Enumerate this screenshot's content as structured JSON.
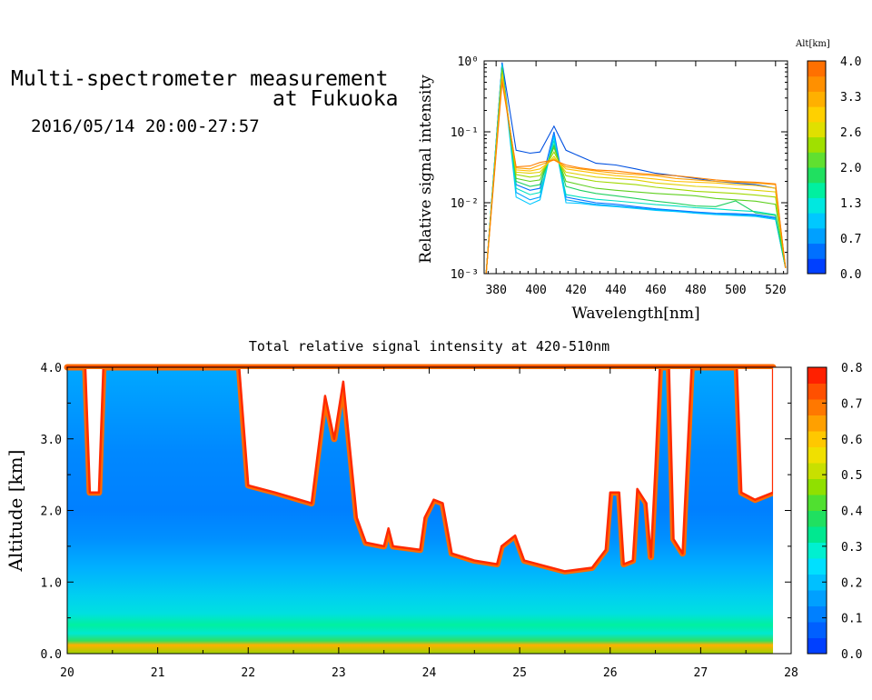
{
  "header": {
    "title_line1": "Multi-spectrometer measurement",
    "title_line2": "at Fukuoka",
    "datetime": "2016/05/14 20:00-27:57"
  },
  "chart_data": [
    {
      "type": "line",
      "xlabel": "Wavelength[nm]",
      "ylabel": "Relative signal intensity",
      "xlim": [
        374,
        526
      ],
      "ylim": [
        0.001,
        1
      ],
      "yscale": "log",
      "x_ticks": [
        380,
        400,
        420,
        440,
        460,
        480,
        500,
        520
      ],
      "y_tick_labels": [
        "10⁻³",
        "10⁻²",
        "10⁻¹",
        "10⁰"
      ],
      "colorbar": {
        "title": "Alt[km]",
        "ticks": [
          "0.0",
          "0.7",
          "1.3",
          "2.0",
          "2.6",
          "3.3",
          "4.0"
        ],
        "colors": [
          "#0040ff",
          "#0070ff",
          "#00a0ff",
          "#00c8ff",
          "#00e8e0",
          "#00f0a0",
          "#20e060",
          "#60e030",
          "#a0e000",
          "#e0e000",
          "#ffd000",
          "#ffb000",
          "#ff9000",
          "#ff7000"
        ]
      },
      "series": [
        {
          "color": "#0050e0",
          "x": [
            375,
            383,
            390,
            397,
            402,
            409,
            415,
            422,
            430,
            440,
            450,
            460,
            470,
            480,
            490,
            500,
            510,
            520,
            525
          ],
          "y": [
            0.001,
            0.95,
            0.055,
            0.05,
            0.052,
            0.12,
            0.055,
            0.045,
            0.036,
            0.034,
            0.03,
            0.026,
            0.024,
            0.022,
            0.02,
            0.019,
            0.018,
            0.016,
            0.0012
          ]
        },
        {
          "color": "#0070ff",
          "x": [
            375,
            383,
            390,
            397,
            402,
            409,
            415,
            422,
            430,
            440,
            450,
            460,
            470,
            480,
            490,
            500,
            510,
            520,
            525
          ],
          "y": [
            0.001,
            0.93,
            0.018,
            0.015,
            0.016,
            0.1,
            0.012,
            0.011,
            0.01,
            0.0095,
            0.0088,
            0.0082,
            0.0078,
            0.0074,
            0.0071,
            0.007,
            0.0068,
            0.0062,
            0.0012
          ]
        },
        {
          "color": "#00a0ff",
          "x": [
            375,
            383,
            390,
            397,
            402,
            409,
            415,
            422,
            430,
            440,
            450,
            460,
            470,
            480,
            490,
            500,
            510,
            520,
            525
          ],
          "y": [
            0.001,
            0.9,
            0.014,
            0.011,
            0.012,
            0.09,
            0.011,
            0.0102,
            0.0095,
            0.009,
            0.0085,
            0.008,
            0.0076,
            0.0072,
            0.007,
            0.0068,
            0.0066,
            0.006,
            0.0012
          ]
        },
        {
          "color": "#00c8ff",
          "x": [
            375,
            383,
            390,
            397,
            402,
            409,
            415,
            422,
            430,
            440,
            450,
            460,
            470,
            480,
            490,
            500,
            510,
            520,
            525
          ],
          "y": [
            0.001,
            0.88,
            0.012,
            0.0095,
            0.011,
            0.085,
            0.01,
            0.0098,
            0.0092,
            0.0088,
            0.0083,
            0.0078,
            0.0075,
            0.0071,
            0.0068,
            0.0066,
            0.0064,
            0.0058,
            0.0012
          ]
        },
        {
          "color": "#00e0c0",
          "x": [
            375,
            383,
            390,
            397,
            402,
            409,
            415,
            422,
            430,
            440,
            450,
            460,
            470,
            480,
            490,
            500,
            510,
            520,
            525
          ],
          "y": [
            0.001,
            0.85,
            0.016,
            0.013,
            0.014,
            0.075,
            0.013,
            0.012,
            0.0112,
            0.0106,
            0.01,
            0.0094,
            0.009,
            0.0085,
            0.0082,
            0.0078,
            0.0075,
            0.0068,
            0.0012
          ]
        },
        {
          "color": "#20d060",
          "x": [
            375,
            383,
            390,
            397,
            402,
            409,
            415,
            422,
            430,
            440,
            450,
            460,
            470,
            480,
            490,
            500,
            510,
            520,
            525
          ],
          "y": [
            0.001,
            0.8,
            0.02,
            0.017,
            0.018,
            0.065,
            0.017,
            0.015,
            0.0135,
            0.0125,
            0.0115,
            0.0105,
            0.0098,
            0.009,
            0.0088,
            0.0106,
            0.0072,
            0.0066,
            0.0012
          ]
        },
        {
          "color": "#60d020",
          "x": [
            375,
            383,
            390,
            397,
            402,
            409,
            415,
            422,
            430,
            440,
            450,
            460,
            470,
            480,
            490,
            500,
            510,
            520,
            525
          ],
          "y": [
            0.001,
            0.75,
            0.022,
            0.02,
            0.021,
            0.06,
            0.02,
            0.018,
            0.016,
            0.015,
            0.0142,
            0.0135,
            0.013,
            0.0125,
            0.0115,
            0.011,
            0.0105,
            0.0095,
            0.0012
          ]
        },
        {
          "color": "#a0d800",
          "x": [
            375,
            383,
            390,
            397,
            402,
            409,
            415,
            422,
            430,
            440,
            450,
            460,
            470,
            480,
            490,
            500,
            510,
            520,
            525
          ],
          "y": [
            0.001,
            0.7,
            0.025,
            0.023,
            0.024,
            0.052,
            0.024,
            0.022,
            0.02,
            0.019,
            0.018,
            0.0165,
            0.0155,
            0.0145,
            0.014,
            0.0135,
            0.0128,
            0.012,
            0.0012
          ]
        },
        {
          "color": "#e0d000",
          "x": [
            375,
            383,
            390,
            397,
            402,
            409,
            415,
            422,
            430,
            440,
            450,
            460,
            470,
            480,
            490,
            500,
            510,
            520,
            525
          ],
          "y": [
            0.001,
            0.65,
            0.027,
            0.026,
            0.027,
            0.045,
            0.027,
            0.025,
            0.023,
            0.022,
            0.021,
            0.019,
            0.018,
            0.017,
            0.0165,
            0.0158,
            0.015,
            0.0142,
            0.0012
          ]
        },
        {
          "color": "#ffc000",
          "x": [
            375,
            383,
            390,
            397,
            402,
            409,
            415,
            422,
            430,
            440,
            450,
            460,
            470,
            480,
            490,
            500,
            510,
            520,
            525
          ],
          "y": [
            0.001,
            0.6,
            0.029,
            0.028,
            0.03,
            0.042,
            0.03,
            0.028,
            0.026,
            0.024,
            0.023,
            0.0215,
            0.02,
            0.0195,
            0.019,
            0.018,
            0.0175,
            0.016,
            0.0012
          ]
        },
        {
          "color": "#ffa000",
          "x": [
            375,
            383,
            390,
            397,
            402,
            409,
            415,
            422,
            430,
            440,
            450,
            460,
            470,
            480,
            490,
            500,
            510,
            520,
            525
          ],
          "y": [
            0.001,
            0.55,
            0.031,
            0.03,
            0.034,
            0.04,
            0.032,
            0.03,
            0.028,
            0.026,
            0.025,
            0.024,
            0.022,
            0.021,
            0.02,
            0.0195,
            0.019,
            0.018,
            0.0012
          ]
        },
        {
          "color": "#ff8000",
          "x": [
            375,
            383,
            390,
            397,
            402,
            409,
            415,
            422,
            430,
            440,
            450,
            460,
            470,
            480,
            490,
            500,
            510,
            520,
            525
          ],
          "y": [
            0.001,
            0.5,
            0.032,
            0.033,
            0.037,
            0.04,
            0.034,
            0.031,
            0.029,
            0.028,
            0.026,
            0.025,
            0.024,
            0.0225,
            0.021,
            0.02,
            0.0195,
            0.0185,
            0.0012
          ]
        }
      ]
    },
    {
      "type": "heatmap",
      "title": "Total relative signal intensity at 420-510nm",
      "ylabel": "Altitude [km]",
      "xlim": [
        20,
        28
      ],
      "ylim": [
        0,
        4
      ],
      "x_ticks": [
        20,
        21,
        22,
        23,
        24,
        25,
        26,
        27,
        28
      ],
      "y_ticks": [
        "0.0",
        "1.0",
        "2.0",
        "3.0",
        "4.0"
      ],
      "data_end_hour": 27.8,
      "cloud_base_km": [
        [
          20.0,
          4.0
        ],
        [
          20.2,
          4.0
        ],
        [
          20.25,
          2.25
        ],
        [
          20.35,
          2.25
        ],
        [
          20.4,
          4.0
        ],
        [
          21.9,
          4.0
        ],
        [
          22.0,
          2.35
        ],
        [
          22.3,
          2.25
        ],
        [
          22.7,
          2.1
        ],
        [
          22.85,
          3.6
        ],
        [
          22.95,
          3.0
        ],
        [
          23.05,
          3.8
        ],
        [
          23.2,
          1.9
        ],
        [
          23.3,
          1.55
        ],
        [
          23.5,
          1.5
        ],
        [
          23.55,
          1.75
        ],
        [
          23.6,
          1.5
        ],
        [
          23.9,
          1.45
        ],
        [
          23.95,
          1.9
        ],
        [
          24.05,
          2.15
        ],
        [
          24.15,
          2.1
        ],
        [
          24.25,
          1.4
        ],
        [
          24.5,
          1.3
        ],
        [
          24.75,
          1.25
        ],
        [
          24.8,
          1.5
        ],
        [
          24.95,
          1.65
        ],
        [
          25.05,
          1.3
        ],
        [
          25.5,
          1.15
        ],
        [
          25.8,
          1.2
        ],
        [
          25.95,
          1.45
        ],
        [
          26.0,
          2.25
        ],
        [
          26.1,
          2.25
        ],
        [
          26.15,
          1.25
        ],
        [
          26.25,
          1.3
        ],
        [
          26.3,
          2.3
        ],
        [
          26.4,
          2.1
        ],
        [
          26.45,
          1.35
        ],
        [
          26.5,
          2.6
        ],
        [
          26.55,
          4.0
        ],
        [
          26.65,
          4.0
        ],
        [
          26.7,
          1.6
        ],
        [
          26.8,
          1.4
        ],
        [
          26.9,
          4.0
        ],
        [
          27.4,
          4.0
        ],
        [
          27.45,
          2.25
        ],
        [
          27.6,
          2.15
        ],
        [
          27.8,
          2.25
        ]
      ],
      "colorbar": {
        "ticks": [
          "0.0",
          "0.1",
          "0.2",
          "0.3",
          "0.4",
          "0.5",
          "0.6",
          "0.7",
          "0.8"
        ],
        "colors": [
          "#0040ff",
          "#0060ff",
          "#0080ff",
          "#00a0ff",
          "#00c0ff",
          "#00e0ff",
          "#00f0d0",
          "#00e890",
          "#20e060",
          "#50e030",
          "#90e000",
          "#c8e000",
          "#f0e000",
          "#ffc800",
          "#ffa000",
          "#ff7800",
          "#ff5000",
          "#ff2000"
        ]
      }
    }
  ]
}
